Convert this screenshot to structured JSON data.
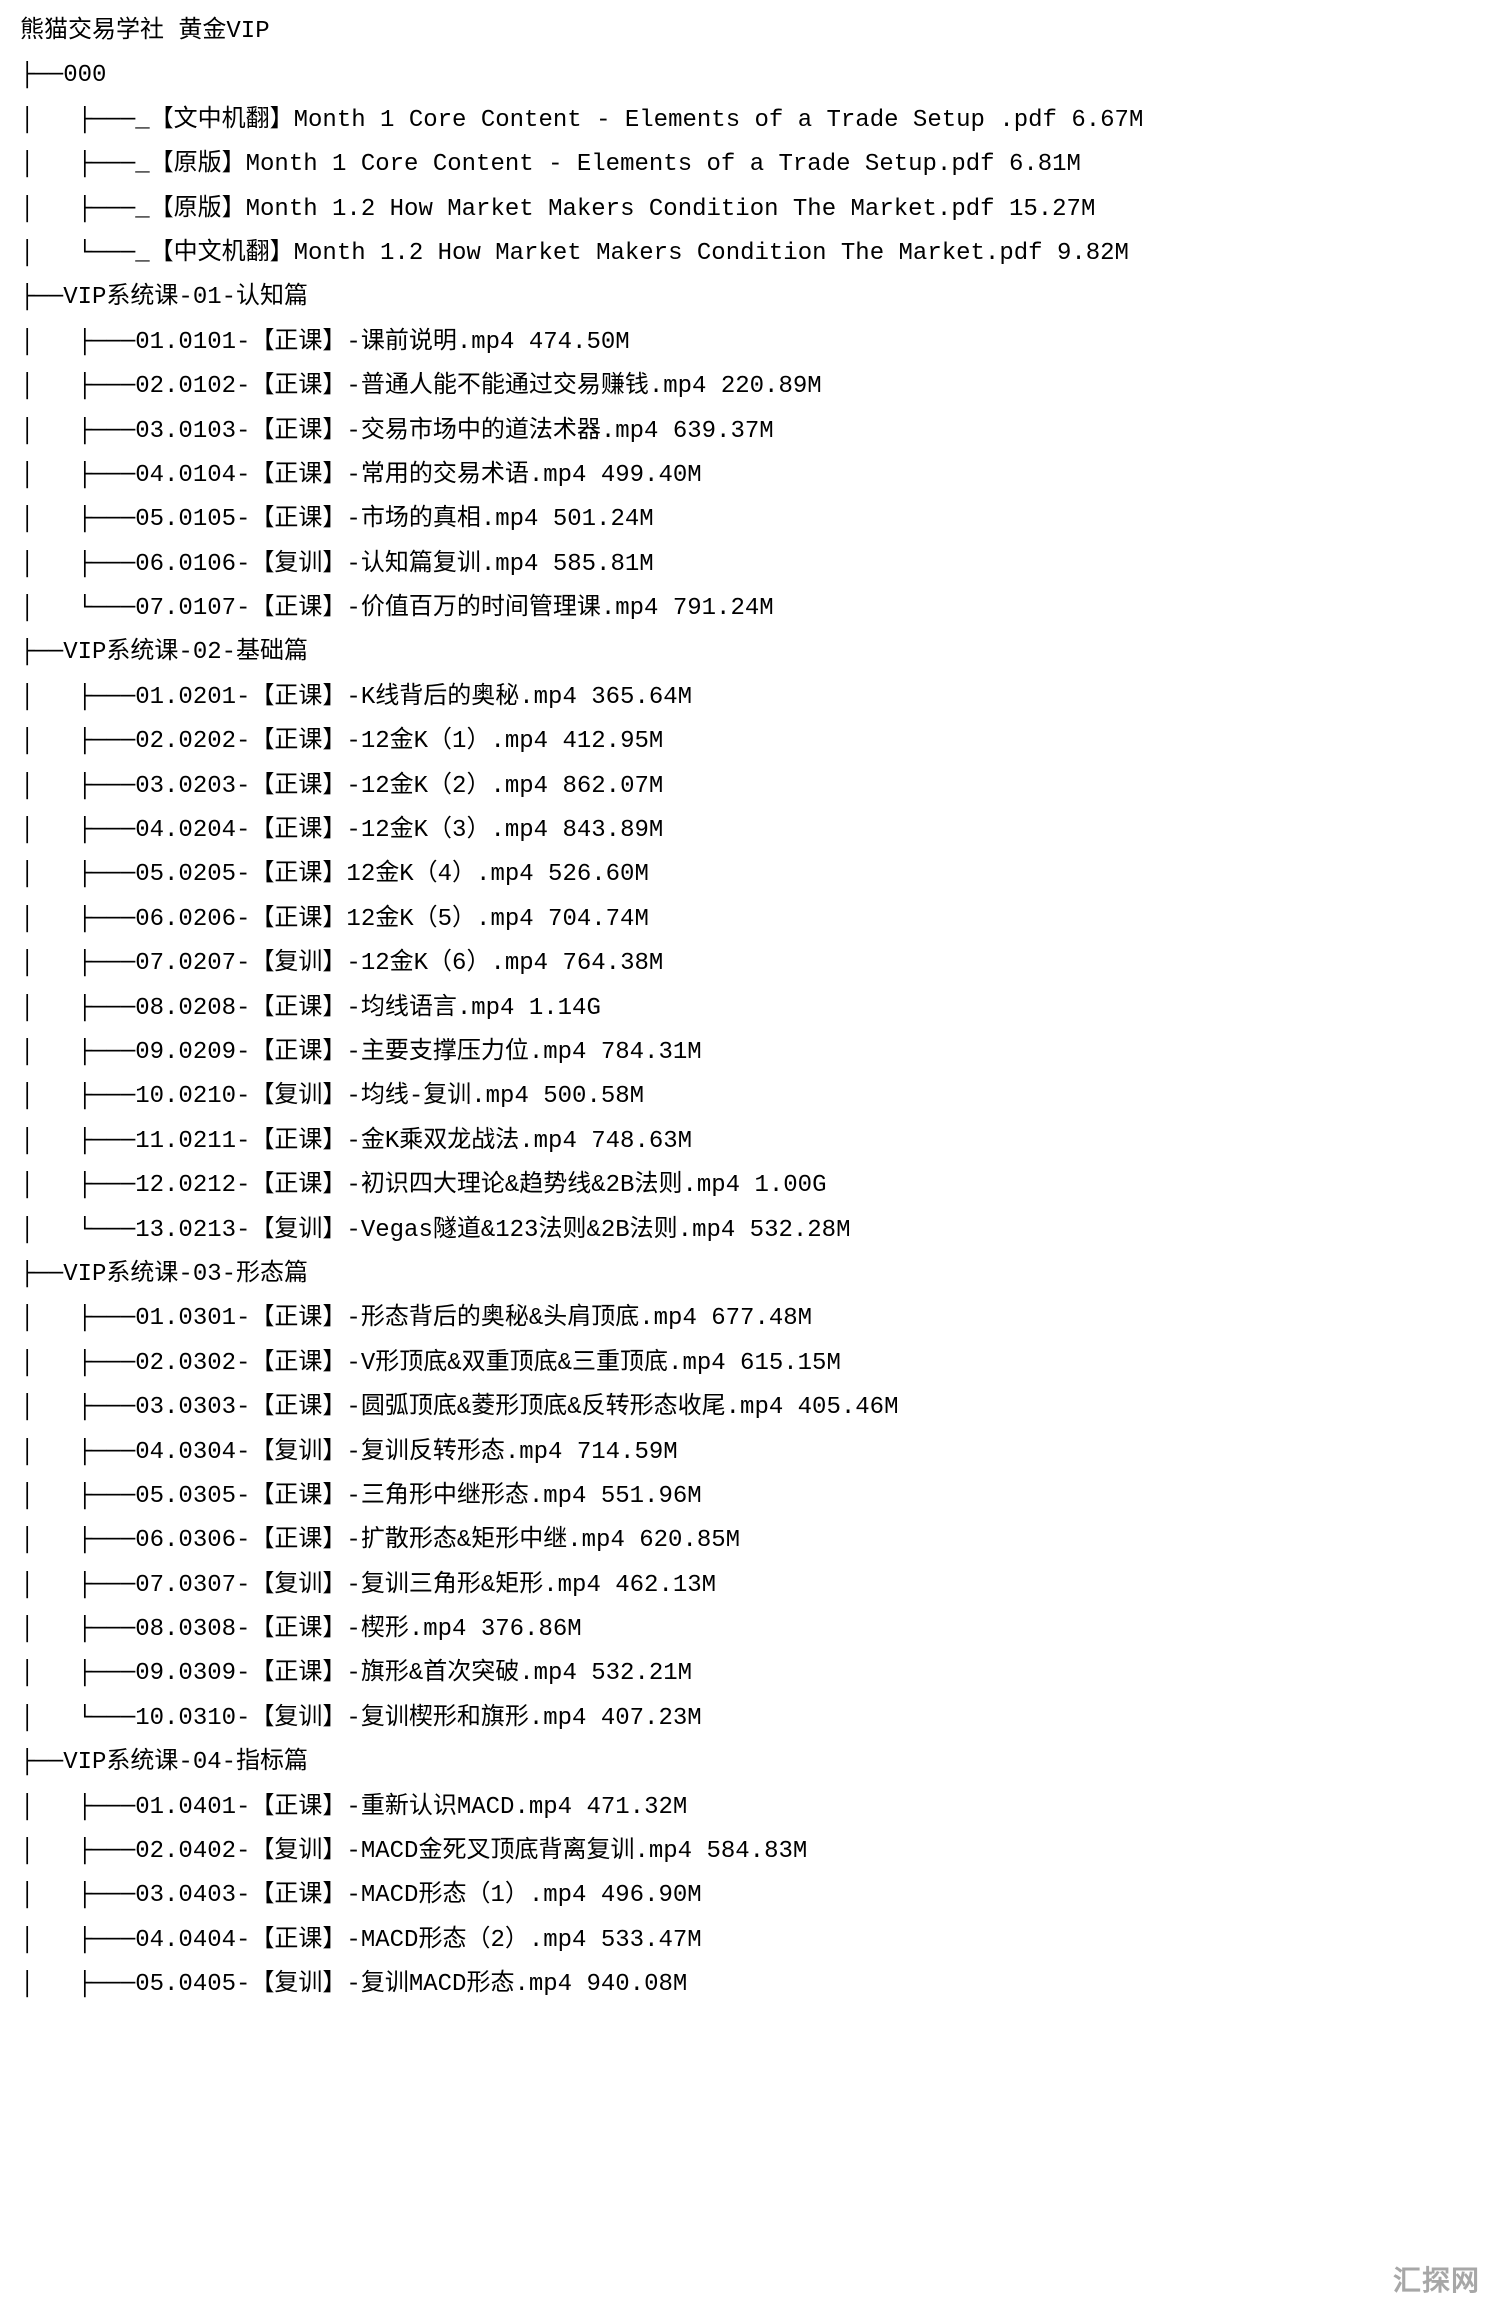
{
  "font_family": "SimSun / monospace",
  "font_size_pt": 18,
  "line_height": 1.85,
  "background_color": "#ffffff",
  "text_color": "#000000",
  "watermark": "汇探网",
  "title": "熊猫交易学社 黄金VIP",
  "folders": [
    {
      "name": "000",
      "items": [
        {
          "prefix": "_",
          "name": "【文中机翻】Month 1 Core Content - Elements of a Trade Setup .pdf",
          "size": "6.67M"
        },
        {
          "prefix": "_",
          "name": "【原版】Month 1 Core Content - Elements of a Trade Setup.pdf",
          "size": "6.81M"
        },
        {
          "prefix": "_",
          "name": "【原版】Month 1.2 How Market Makers Condition The Market.pdf",
          "size": "15.27M"
        },
        {
          "prefix": "_",
          "name": "【中文机翻】Month 1.2 How Market Makers Condition The Market.pdf",
          "size": "9.82M"
        }
      ]
    },
    {
      "name": "VIP系统课-01-认知篇",
      "items": [
        {
          "prefix": "01.0101-",
          "name": "【正课】-课前说明.mp4",
          "size": "474.50M"
        },
        {
          "prefix": "02.0102-",
          "name": "【正课】-普通人能不能通过交易赚钱.mp4",
          "size": "220.89M"
        },
        {
          "prefix": "03.0103-",
          "name": "【正课】-交易市场中的道法术器.mp4",
          "size": "639.37M"
        },
        {
          "prefix": "04.0104-",
          "name": "【正课】-常用的交易术语.mp4",
          "size": "499.40M"
        },
        {
          "prefix": "05.0105-",
          "name": "【正课】-市场的真相.mp4",
          "size": "501.24M"
        },
        {
          "prefix": "06.0106-",
          "name": "【复训】-认知篇复训.mp4",
          "size": "585.81M"
        },
        {
          "prefix": "07.0107-",
          "name": "【正课】-价值百万的时间管理课.mp4",
          "size": "791.24M"
        }
      ]
    },
    {
      "name": "VIP系统课-02-基础篇",
      "items": [
        {
          "prefix": "01.0201-",
          "name": "【正课】-K线背后的奥秘.mp4",
          "size": "365.64M"
        },
        {
          "prefix": "02.0202-",
          "name": "【正课】-12金K（1）.mp4",
          "size": "412.95M"
        },
        {
          "prefix": "03.0203-",
          "name": "【正课】-12金K（2）.mp4",
          "size": "862.07M"
        },
        {
          "prefix": "04.0204-",
          "name": "【正课】-12金K（3）.mp4",
          "size": "843.89M"
        },
        {
          "prefix": "05.0205-",
          "name": "【正课】12金K（4）.mp4",
          "size": "526.60M"
        },
        {
          "prefix": "06.0206-",
          "name": "【正课】12金K（5）.mp4",
          "size": "704.74M"
        },
        {
          "prefix": "07.0207-",
          "name": "【复训】-12金K（6）.mp4",
          "size": "764.38M"
        },
        {
          "prefix": "08.0208-",
          "name": "【正课】-均线语言.mp4",
          "size": "1.14G"
        },
        {
          "prefix": "09.0209-",
          "name": "【正课】-主要支撑压力位.mp4",
          "size": "784.31M"
        },
        {
          "prefix": "10.0210-",
          "name": "【复训】-均线-复训.mp4",
          "size": "500.58M"
        },
        {
          "prefix": "11.0211-",
          "name": "【正课】-金K乘双龙战法.mp4",
          "size": "748.63M"
        },
        {
          "prefix": "12.0212-",
          "name": "【正课】-初识四大理论&趋势线&2B法则.mp4",
          "size": "1.00G"
        },
        {
          "prefix": "13.0213-",
          "name": "【复训】-Vegas隧道&123法则&2B法则.mp4",
          "size": "532.28M"
        }
      ]
    },
    {
      "name": "VIP系统课-03-形态篇",
      "items": [
        {
          "prefix": "01.0301-",
          "name": "【正课】-形态背后的奥秘&头肩顶底.mp4",
          "size": "677.48M"
        },
        {
          "prefix": "02.0302-",
          "name": "【正课】-V形顶底&双重顶底&三重顶底.mp4",
          "size": "615.15M"
        },
        {
          "prefix": "03.0303-",
          "name": "【正课】-圆弧顶底&菱形顶底&反转形态收尾.mp4",
          "size": "405.46M"
        },
        {
          "prefix": "04.0304-",
          "name": "【复训】-复训反转形态.mp4",
          "size": "714.59M"
        },
        {
          "prefix": "05.0305-",
          "name": "【正课】-三角形中继形态.mp4",
          "size": "551.96M"
        },
        {
          "prefix": "06.0306-",
          "name": "【正课】-扩散形态&矩形中继.mp4",
          "size": "620.85M"
        },
        {
          "prefix": "07.0307-",
          "name": "【复训】-复训三角形&矩形.mp4",
          "size": "462.13M"
        },
        {
          "prefix": "08.0308-",
          "name": "【正课】-楔形.mp4",
          "size": "376.86M"
        },
        {
          "prefix": "09.0309-",
          "name": "【正课】-旗形&首次突破.mp4",
          "size": "532.21M"
        },
        {
          "prefix": "10.0310-",
          "name": "【复训】-复训楔形和旗形.mp4",
          "size": "407.23M"
        }
      ]
    },
    {
      "name": "VIP系统课-04-指标篇",
      "cut": true,
      "items": [
        {
          "prefix": "01.0401-",
          "name": "【正课】-重新认识MACD.mp4",
          "size": "471.32M"
        },
        {
          "prefix": "02.0402-",
          "name": "【复训】-MACD金死叉顶底背离复训.mp4",
          "size": "584.83M"
        },
        {
          "prefix": "03.0403-",
          "name": "【正课】-MACD形态（1）.mp4",
          "size": "496.90M"
        },
        {
          "prefix": "04.0404-",
          "name": "【正课】-MACD形态（2）.mp4",
          "size": "533.47M"
        },
        {
          "prefix": "05.0405-",
          "name": "【复训】-复训MACD形态.mp4",
          "size": "940.08M"
        }
      ]
    }
  ],
  "tree_glyphs": {
    "branch1": "├──",
    "last1": "└──",
    "pipe": "│   ",
    "branch2": "├───",
    "last2": "└───"
  }
}
